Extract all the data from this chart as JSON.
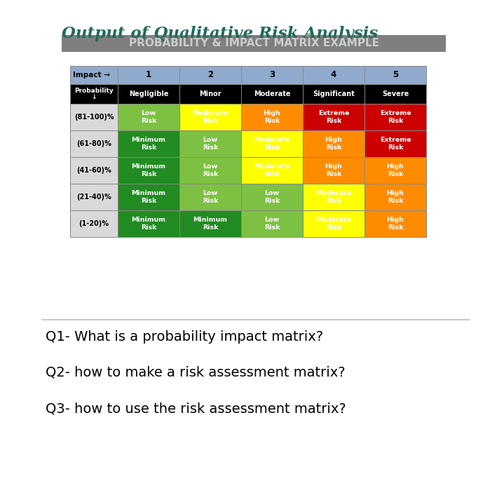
{
  "title1": "Output of Qualitative Risk Analysis",
  "title2": "PROBABILITY & IMPACT MATRIX EXAMPLE",
  "impact_label": "Impact →",
  "col_numbers": [
    "1",
    "2",
    "3",
    "4",
    "5"
  ],
  "col_labels": [
    "Negligible",
    "Minor",
    "Moderate",
    "Significant",
    "Severe"
  ],
  "row_labels": [
    "(81-100)%",
    "(61-80)%",
    "(41-60)%",
    "(21-40)%",
    "(1-20)%"
  ],
  "cell_text": [
    [
      "Low\nRisk",
      "Moderate\nRisk",
      "High\nRisk",
      "Extreme\nRisk",
      "Extreme\nRisk"
    ],
    [
      "Minimum\nRisk",
      "Low\nRisk",
      "Moderate\nRisk",
      "High\nRisk",
      "Extreme\nRisk"
    ],
    [
      "Minimum\nRisk",
      "Low\nRisk",
      "Moderate\nRisk",
      "High\nRisk",
      "High\nRisk"
    ],
    [
      "Minimum\nRisk",
      "Low\nRisk",
      "Low\nRisk",
      "Moderate\nRisk",
      "High\nRisk"
    ],
    [
      "Minimum\nRisk",
      "Minimum\nRisk",
      "Low\nRisk",
      "Moderate\nRisk",
      "High\nRisk"
    ]
  ],
  "cell_colors": [
    [
      "#7dc142",
      "#ffff00",
      "#ff8c00",
      "#cc0000",
      "#cc0000"
    ],
    [
      "#228b22",
      "#7dc142",
      "#ffff00",
      "#ff8c00",
      "#cc0000"
    ],
    [
      "#228b22",
      "#7dc142",
      "#ffff00",
      "#ff8c00",
      "#ff8c00"
    ],
    [
      "#228b22",
      "#7dc142",
      "#7dc142",
      "#ffff00",
      "#ff8c00"
    ],
    [
      "#228b22",
      "#228b22",
      "#7dc142",
      "#ffff00",
      "#ff8c00"
    ]
  ],
  "cell_text_colors": [
    [
      "#ffffff",
      "#ffffff",
      "#ffffff",
      "#ffffff",
      "#ffffff"
    ],
    [
      "#ffffff",
      "#ffffff",
      "#ffffff",
      "#ffffff",
      "#ffffff"
    ],
    [
      "#ffffff",
      "#ffffff",
      "#ffffff",
      "#ffffff",
      "#ffffff"
    ],
    [
      "#ffffff",
      "#ffffff",
      "#ffffff",
      "#ffffff",
      "#ffffff"
    ],
    [
      "#ffffff",
      "#ffffff",
      "#ffffff",
      "#ffffff",
      "#ffffff"
    ]
  ],
  "header_bg": "#8faacc",
  "black_row_bg": "#000000",
  "row_label_bg": "#d9d9d9",
  "questions": [
    "Q1- What is a probability impact matrix?",
    "Q2- how to make a risk assessment matrix?",
    "Q3- how to use the risk assessment matrix?"
  ],
  "bg_color": "#ffffff",
  "title2_bg": "#7f7f7f",
  "title2_text_color": "#cccccc",
  "title1_color": "#1f6b5a"
}
